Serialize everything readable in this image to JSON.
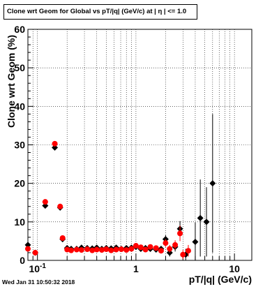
{
  "chart_data": {
    "type": "scatter",
    "title": "Clone wrt Geom for Global vs pT/|q| (GeV/c) at |  η | <= 1.0",
    "xlabel": "pT/|q| (GeV/c)",
    "ylabel": "Clone wrt Geom (%)",
    "xscale": "log",
    "xlim": [
      0.08,
      15
    ],
    "ylim": [
      0,
      60
    ],
    "grid": true,
    "y_ticks": [
      0,
      10,
      20,
      30,
      40,
      50,
      60
    ],
    "y_tick_labels": [
      "0",
      "10",
      "20",
      "30",
      "40",
      "50",
      "60"
    ],
    "x_tick_labels": [
      {
        "label": "10",
        "sup": "-1",
        "value": 0.1
      },
      {
        "label": "1",
        "sup": "",
        "value": 1
      },
      {
        "label": "10",
        "sup": "",
        "value": 10
      }
    ],
    "series": [
      {
        "color": "#000000",
        "marker": "diamond",
        "points": [
          {
            "x": 0.08,
            "y": 4.0,
            "xerr": 0.003,
            "yerr": 0.5
          },
          {
            "x": 0.095,
            "y": 2.0,
            "xerr": 0.005,
            "yerr": 0.3
          },
          {
            "x": 0.12,
            "y": 14.2,
            "xerr": 0.008,
            "yerr": 0.5
          },
          {
            "x": 0.15,
            "y": 29.3,
            "xerr": 0.008,
            "yerr": 0.7
          },
          {
            "x": 0.17,
            "y": 13.7,
            "xerr": 0.007,
            "yerr": 0.5
          },
          {
            "x": 0.18,
            "y": 5.5,
            "xerr": 0.006,
            "yerr": 0.4
          },
          {
            "x": 0.2,
            "y": 3.2,
            "xerr": 0.006,
            "yerr": 0.3
          },
          {
            "x": 0.22,
            "y": 3.0,
            "xerr": 0.006,
            "yerr": 0.3
          },
          {
            "x": 0.25,
            "y": 3.0,
            "xerr": 0.007,
            "yerr": 0.3
          },
          {
            "x": 0.28,
            "y": 3.3,
            "xerr": 0.007,
            "yerr": 0.3
          },
          {
            "x": 0.32,
            "y": 3.2,
            "xerr": 0.008,
            "yerr": 0.3
          },
          {
            "x": 0.36,
            "y": 3.1,
            "xerr": 0.009,
            "yerr": 0.3
          },
          {
            "x": 0.4,
            "y": 3.3,
            "xerr": 0.01,
            "yerr": 0.3
          },
          {
            "x": 0.45,
            "y": 3.0,
            "xerr": 0.011,
            "yerr": 0.3
          },
          {
            "x": 0.5,
            "y": 3.2,
            "xerr": 0.012,
            "yerr": 0.3
          },
          {
            "x": 0.56,
            "y": 3.1,
            "xerr": 0.014,
            "yerr": 0.3
          },
          {
            "x": 0.63,
            "y": 3.3,
            "xerr": 0.015,
            "yerr": 0.3
          },
          {
            "x": 0.71,
            "y": 3.0,
            "xerr": 0.017,
            "yerr": 0.3
          },
          {
            "x": 0.8,
            "y": 3.2,
            "xerr": 0.02,
            "yerr": 0.3
          },
          {
            "x": 0.9,
            "y": 3.3,
            "xerr": 0.022,
            "yerr": 0.3
          },
          {
            "x": 1.0,
            "y": 3.5,
            "xerr": 0.025,
            "yerr": 0.4
          },
          {
            "x": 1.12,
            "y": 3.0,
            "xerr": 0.028,
            "yerr": 0.4
          },
          {
            "x": 1.25,
            "y": 3.2,
            "xerr": 0.03,
            "yerr": 0.4
          },
          {
            "x": 1.4,
            "y": 3.0,
            "xerr": 0.035,
            "yerr": 0.4
          },
          {
            "x": 1.6,
            "y": 2.8,
            "xerr": 0.04,
            "yerr": 0.5
          },
          {
            "x": 1.8,
            "y": 3.0,
            "xerr": 0.045,
            "yerr": 0.6
          },
          {
            "x": 2.0,
            "y": 5.5,
            "xerr": 0.05,
            "yerr": 1.0
          },
          {
            "x": 2.2,
            "y": 2.0,
            "xerr": 0.055,
            "yerr": 1.0
          },
          {
            "x": 2.5,
            "y": 3.5,
            "xerr": 0.06,
            "yerr": 1.2
          },
          {
            "x": 2.8,
            "y": 8.2,
            "xerr": 0.07,
            "yerr": 2.0
          },
          {
            "x": 3.2,
            "y": 1.5,
            "xerr": 0.08,
            "yerr": 1.5
          },
          {
            "x": 4.0,
            "y": 4.8,
            "xerr": 0.1,
            "yerr": 5.0
          },
          {
            "x": 4.5,
            "y": 11.0,
            "xerr": 0.12,
            "yerr": 10.0
          },
          {
            "x": 5.2,
            "y": 10.0,
            "xerr": 0.13,
            "yerr": 9.0
          },
          {
            "x": 6.0,
            "y": 20.0,
            "xerr": 0.15,
            "yerr": 18.0
          }
        ]
      },
      {
        "color": "#ff0000",
        "marker": "circle",
        "points": [
          {
            "x": 0.08,
            "y": 3.0,
            "xerr": 0.003,
            "yerr": 0.5
          },
          {
            "x": 0.095,
            "y": 2.0,
            "xerr": 0.005,
            "yerr": 0.3
          },
          {
            "x": 0.12,
            "y": 15.2,
            "xerr": 0.008,
            "yerr": 0.5
          },
          {
            "x": 0.15,
            "y": 30.3,
            "xerr": 0.008,
            "yerr": 0.7
          },
          {
            "x": 0.17,
            "y": 14.0,
            "xerr": 0.007,
            "yerr": 0.5
          },
          {
            "x": 0.18,
            "y": 5.8,
            "xerr": 0.006,
            "yerr": 0.4
          },
          {
            "x": 0.2,
            "y": 2.8,
            "xerr": 0.006,
            "yerr": 0.3
          },
          {
            "x": 0.22,
            "y": 2.6,
            "xerr": 0.006,
            "yerr": 0.3
          },
          {
            "x": 0.25,
            "y": 2.8,
            "xerr": 0.007,
            "yerr": 0.3
          },
          {
            "x": 0.28,
            "y": 2.7,
            "xerr": 0.007,
            "yerr": 0.3
          },
          {
            "x": 0.32,
            "y": 2.9,
            "xerr": 0.008,
            "yerr": 0.3
          },
          {
            "x": 0.36,
            "y": 2.6,
            "xerr": 0.009,
            "yerr": 0.3
          },
          {
            "x": 0.4,
            "y": 2.8,
            "xerr": 0.01,
            "yerr": 0.3
          },
          {
            "x": 0.45,
            "y": 2.7,
            "xerr": 0.011,
            "yerr": 0.3
          },
          {
            "x": 0.5,
            "y": 2.9,
            "xerr": 0.012,
            "yerr": 0.3
          },
          {
            "x": 0.56,
            "y": 2.6,
            "xerr": 0.014,
            "yerr": 0.3
          },
          {
            "x": 0.63,
            "y": 2.8,
            "xerr": 0.015,
            "yerr": 0.3
          },
          {
            "x": 0.71,
            "y": 2.9,
            "xerr": 0.017,
            "yerr": 0.3
          },
          {
            "x": 0.8,
            "y": 2.7,
            "xerr": 0.02,
            "yerr": 0.3
          },
          {
            "x": 0.9,
            "y": 3.0,
            "xerr": 0.022,
            "yerr": 0.3
          },
          {
            "x": 1.0,
            "y": 3.8,
            "xerr": 0.025,
            "yerr": 0.4
          },
          {
            "x": 1.12,
            "y": 3.4,
            "xerr": 0.028,
            "yerr": 0.4
          },
          {
            "x": 1.25,
            "y": 2.8,
            "xerr": 0.03,
            "yerr": 0.4
          },
          {
            "x": 1.4,
            "y": 3.5,
            "xerr": 0.035,
            "yerr": 0.4
          },
          {
            "x": 1.6,
            "y": 3.2,
            "xerr": 0.04,
            "yerr": 0.5
          },
          {
            "x": 1.8,
            "y": 2.5,
            "xerr": 0.045,
            "yerr": 0.6
          },
          {
            "x": 2.0,
            "y": 4.5,
            "xerr": 0.05,
            "yerr": 1.0
          },
          {
            "x": 2.2,
            "y": 3.0,
            "xerr": 0.055,
            "yerr": 1.0
          },
          {
            "x": 2.5,
            "y": 4.0,
            "xerr": 0.06,
            "yerr": 1.2
          },
          {
            "x": 2.8,
            "y": 7.0,
            "xerr": 0.07,
            "yerr": 2.0
          },
          {
            "x": 3.0,
            "y": 1.5,
            "xerr": 0.08,
            "yerr": 1.2
          },
          {
            "x": 3.4,
            "y": 2.5,
            "xerr": 0.09,
            "yerr": 1.5
          }
        ]
      }
    ]
  },
  "footer": {
    "timestamp": "Wed Jan 31 10:50:32 2018"
  }
}
